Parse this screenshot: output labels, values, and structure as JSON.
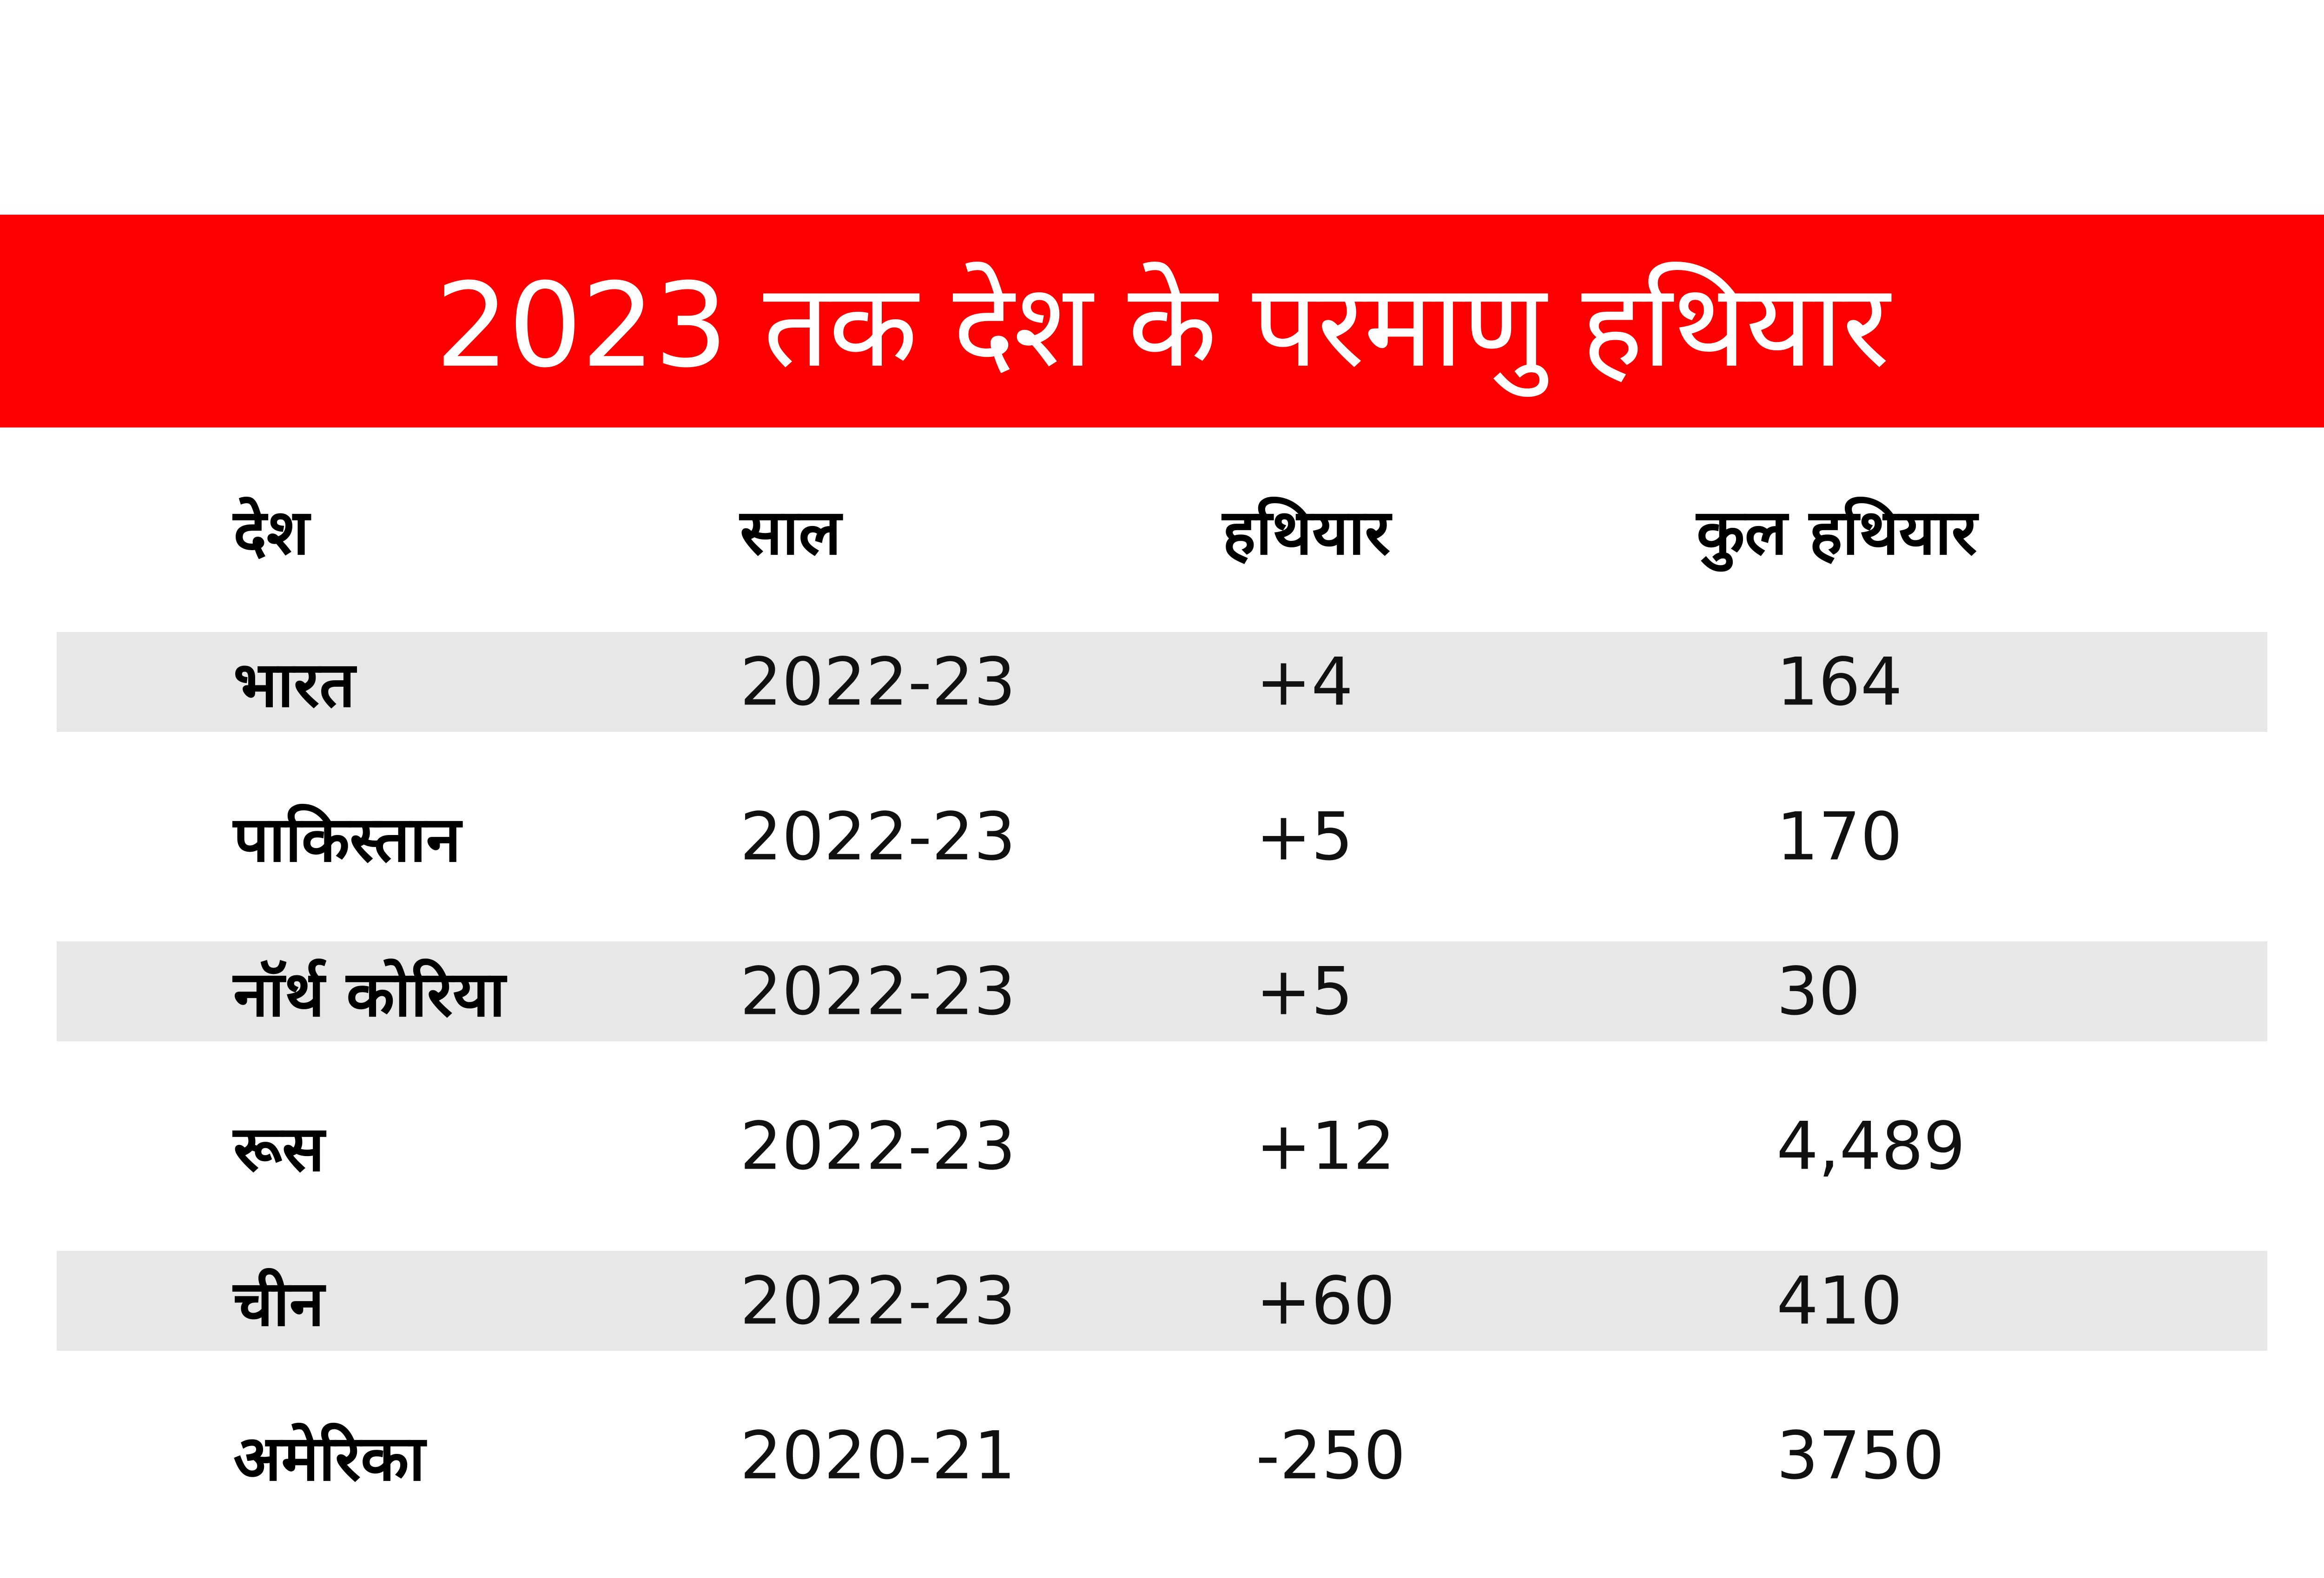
{
  "title": "2023 तक देश के परमाणु हथियार",
  "colors": {
    "banner": "#ff0000",
    "row_shade": "#e7e7e7",
    "title_text": "#ffffff"
  },
  "chart_data": {
    "type": "table",
    "columns": [
      "देश",
      "साल",
      "हथियार",
      "कुल हथियार"
    ],
    "rows": [
      {
        "country": "भारत",
        "year": "2022-23",
        "change": "+4",
        "total": "164"
      },
      {
        "country": "पाकिस्तान",
        "year": "2022-23",
        "change": "+5",
        "total": "170"
      },
      {
        "country": "नॉर्थ कोरिया",
        "year": "2022-23",
        "change": "+5",
        "total": "30"
      },
      {
        "country": "रूस",
        "year": "2022-23",
        "change": "+12",
        "total": "4,489"
      },
      {
        "country": "चीन",
        "year": "2022-23",
        "change": "+60",
        "total": "410"
      },
      {
        "country": "अमेरिका",
        "year": "2020-21",
        "change": "-250",
        "total": "3750"
      }
    ]
  }
}
